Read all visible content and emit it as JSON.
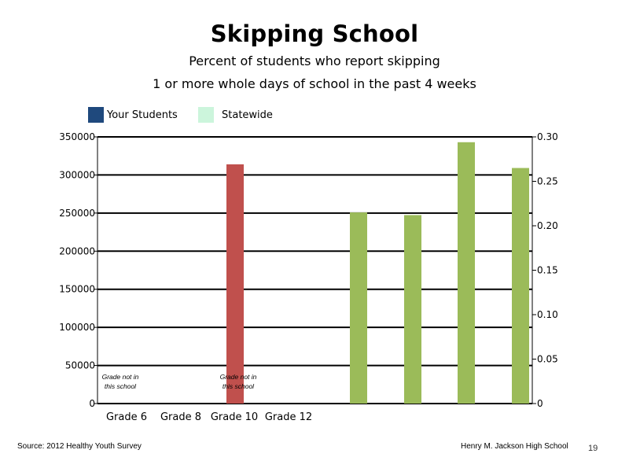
{
  "title": "Skipping School",
  "subtitle_line1": "Percent of students who report skipping",
  "subtitle_line2": "1 or more whole days of school in the past 4 weeks",
  "legend": [
    {
      "label": "Your Students",
      "color": "#1f497d"
    },
    {
      "label": "Statewide",
      "color": "#ccf5dc"
    }
  ],
  "footer": {
    "source": "Source: 2012 Healthy Youth Survey",
    "school": "Henry M.  Jackson High School",
    "page": "19"
  },
  "chart_data": {
    "type": "bar",
    "categories": [
      "Grade 6",
      "Grade 8",
      "Grade 10",
      "Grade 12"
    ],
    "y_left": {
      "min": 0,
      "max": 350000,
      "ticks": [
        "0",
        "50000",
        "100000",
        "150000",
        "200000",
        "250000",
        "300000",
        "350000"
      ]
    },
    "y_right": {
      "min": 0,
      "max": 0.3,
      "ticks": [
        "0",
        "0.05",
        "0.10",
        "0.15",
        "0.20",
        "0.25",
        "0.30"
      ]
    },
    "grid": true,
    "bars": [
      {
        "value": 314000,
        "axis": "left",
        "color": "#c0504d"
      },
      {
        "value": 0.215,
        "axis": "right",
        "color": "#9bbb59"
      },
      {
        "value": 0.212,
        "axis": "right",
        "color": "#9bbb59"
      },
      {
        "value": 0.294,
        "axis": "right",
        "color": "#9bbb59"
      },
      {
        "value": 0.265,
        "axis": "right",
        "color": "#9bbb59"
      }
    ],
    "annotations": [
      {
        "line1": "Grade not in",
        "line2": "this school"
      },
      {
        "line1": "Grade not in",
        "line2": "this school"
      }
    ]
  }
}
